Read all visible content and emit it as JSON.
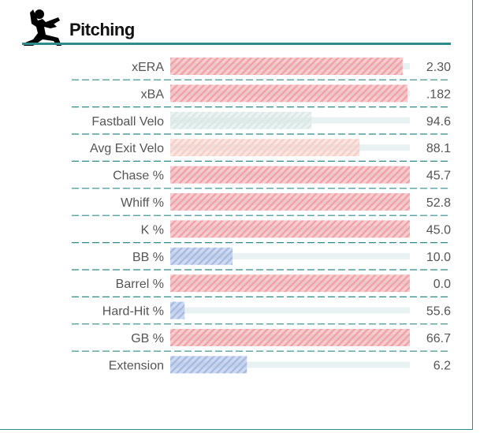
{
  "header": {
    "title": "Pitching",
    "icon": "pitcher-icon"
  },
  "colors": {
    "accent": "#2e8b8b",
    "track": "#e9f2f2",
    "red": "#f0a3a8",
    "pink": "#f5cfc8",
    "light": "#dbe8e6",
    "blue": "#a8bce3"
  },
  "chart_data": {
    "type": "bar",
    "orientation": "horizontal",
    "scale_range": [
      0,
      100
    ],
    "rows": [
      {
        "label": "xERA",
        "value": "2.30",
        "fill": 97,
        "color": "red"
      },
      {
        "label": "xBA",
        "value": ".182",
        "fill": 99,
        "color": "red"
      },
      {
        "label": "Fastball Velo",
        "value": "94.6",
        "fill": 59,
        "color": "light"
      },
      {
        "label": "Avg Exit Velo",
        "value": "88.1",
        "fill": 79,
        "color": "pink"
      },
      {
        "label": "Chase %",
        "value": "45.7",
        "fill": 100,
        "color": "red"
      },
      {
        "label": "Whiff %",
        "value": "52.8",
        "fill": 100,
        "color": "red"
      },
      {
        "label": "K %",
        "value": "45.0",
        "fill": 100,
        "color": "red"
      },
      {
        "label": "BB %",
        "value": "10.0",
        "fill": 26,
        "color": "blue"
      },
      {
        "label": "Barrel %",
        "value": "0.0",
        "fill": 100,
        "color": "red"
      },
      {
        "label": "Hard-Hit %",
        "value": "55.6",
        "fill": 6,
        "color": "blue"
      },
      {
        "label": "GB %",
        "value": "66.7",
        "fill": 100,
        "color": "red"
      },
      {
        "label": "Extension",
        "value": "6.2",
        "fill": 32,
        "color": "blue"
      }
    ]
  }
}
